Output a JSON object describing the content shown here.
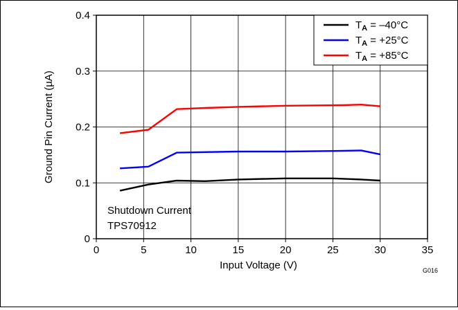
{
  "chart_data": {
    "type": "line",
    "title": "",
    "xlabel": "Input Voltage (V)",
    "ylabel": "Ground Pin Current (µA)",
    "xlim": [
      0,
      35
    ],
    "ylim": [
      0,
      0.4
    ],
    "xticks": [
      0,
      5,
      10,
      15,
      20,
      25,
      30,
      35
    ],
    "yticks": [
      0,
      0.1,
      0.2,
      0.3,
      0.4
    ],
    "xtick_labels": [
      "0",
      "5",
      "10",
      "15",
      "20",
      "25",
      "30",
      "35"
    ],
    "ytick_labels": [
      "0",
      "0.1",
      "0.2",
      "0.3",
      "0.4"
    ],
    "grid": true,
    "legend_position": "top-right",
    "series": [
      {
        "name": "T_A = –40°C",
        "legend_main": "T",
        "legend_sub": "A",
        "legend_rest": " = –40°C",
        "color": "#000000",
        "x": [
          2.5,
          5.5,
          8.5,
          11.5,
          15,
          20,
          25,
          28,
          30
        ],
        "y": [
          0.086,
          0.097,
          0.104,
          0.103,
          0.106,
          0.108,
          0.108,
          0.106,
          0.104
        ]
      },
      {
        "name": "T_A = +25°C",
        "legend_main": "T",
        "legend_sub": "A",
        "legend_rest": " = +25°C",
        "color": "#0000ff",
        "x": [
          2.5,
          5.5,
          8.5,
          11.5,
          15,
          20,
          25,
          28,
          30
        ],
        "y": [
          0.126,
          0.129,
          0.154,
          0.155,
          0.156,
          0.156,
          0.157,
          0.158,
          0.151
        ]
      },
      {
        "name": "T_A = +85°C",
        "legend_main": "T",
        "legend_sub": "A",
        "legend_rest": " = +85°C",
        "color": "#ff0000",
        "x": [
          2.5,
          5.5,
          8.5,
          11.5,
          15,
          20,
          26,
          28,
          30
        ],
        "y": [
          0.189,
          0.195,
          0.232,
          0.234,
          0.236,
          0.238,
          0.239,
          0.24,
          0.237
        ]
      }
    ],
    "annotations": [
      "Shutdown Current",
      "TPS70912"
    ],
    "figure_id": "G016"
  }
}
